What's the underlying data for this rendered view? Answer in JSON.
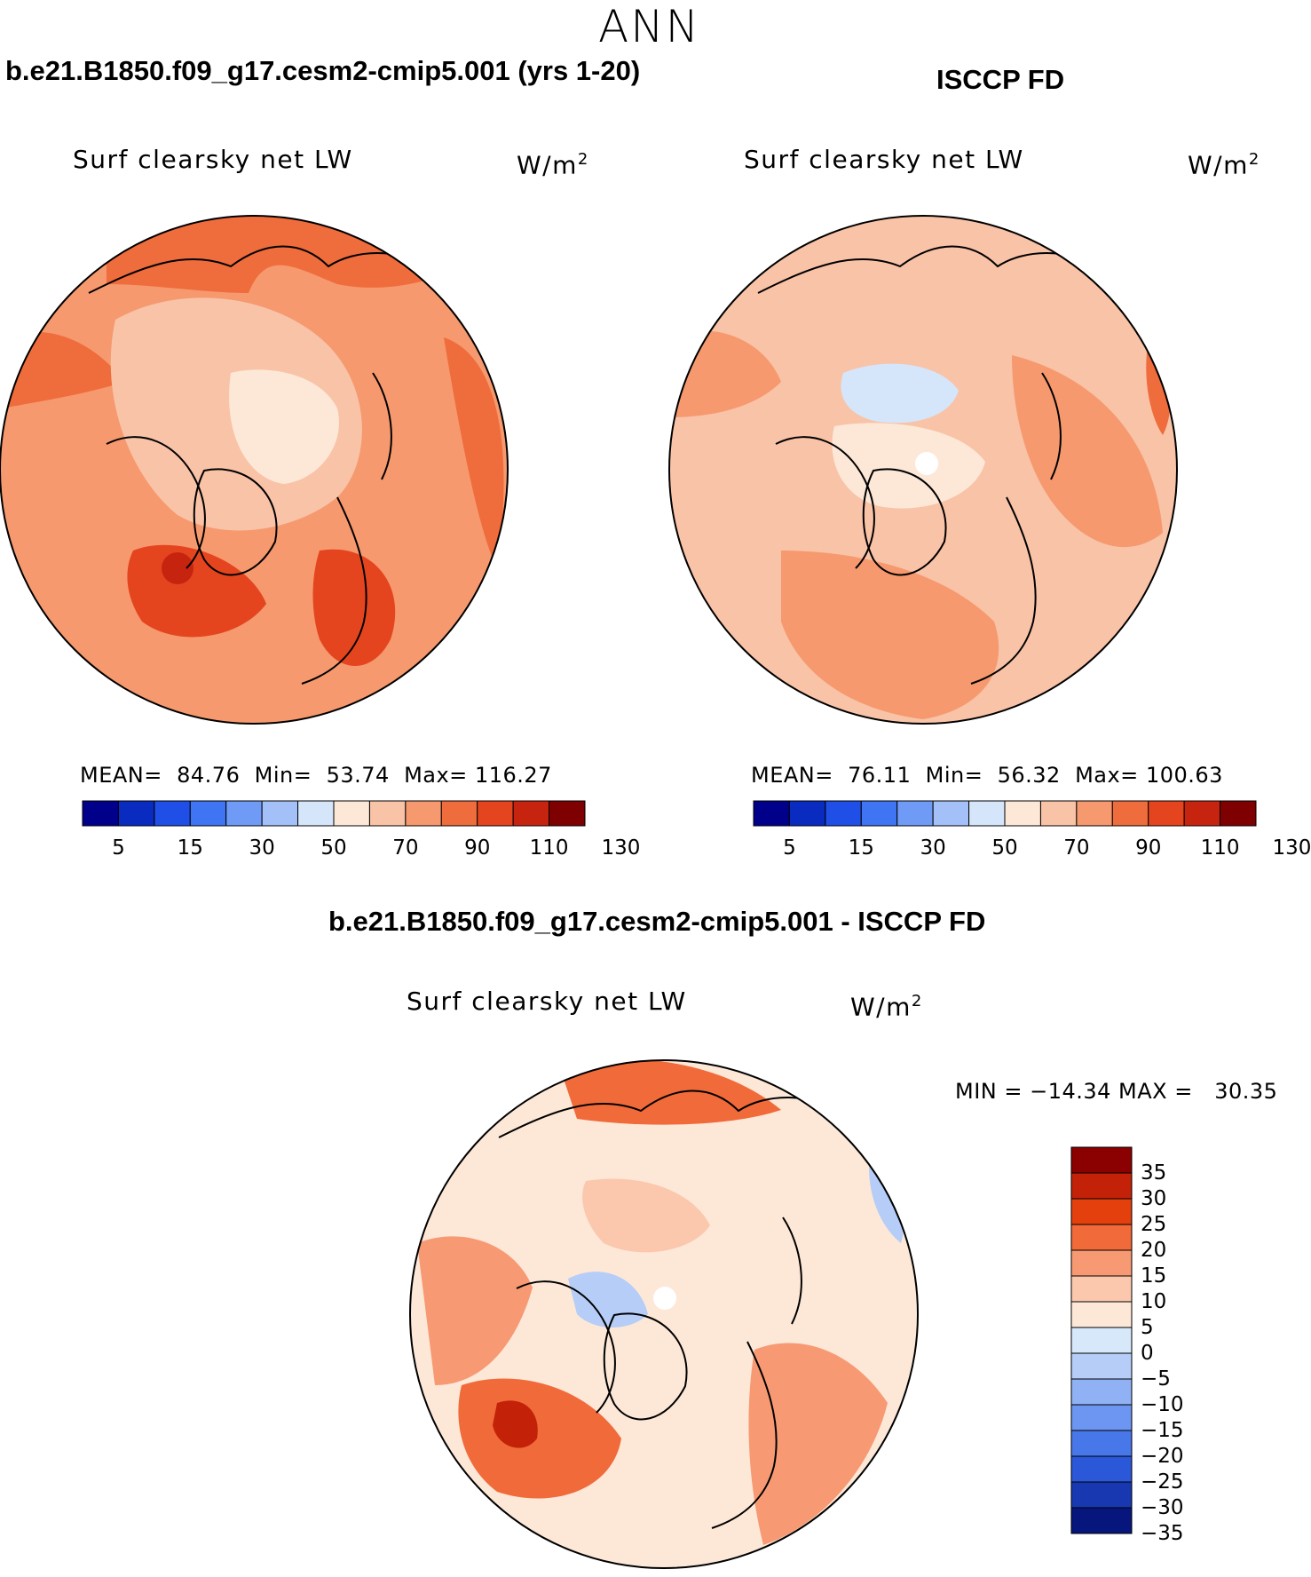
{
  "season": "ANN",
  "panels": [
    {
      "title": "b.e21.B1850.f09_g17.cesm2-cmip5.001 (yrs 1-20)",
      "variable": "Surf clearsky net LW",
      "units": "W/m",
      "units_exp": "2",
      "mean_label": "MEAN=",
      "mean": "84.76",
      "min_label": "Min=",
      "min": "53.74",
      "max_label": "Max=",
      "max": "116.27"
    },
    {
      "title": "ISCCP FD",
      "variable": "Surf clearsky net LW",
      "units": "W/m",
      "units_exp": "2",
      "mean_label": "MEAN=",
      "mean": "76.11",
      "min_label": "Min=",
      "min": "56.32",
      "max_label": "Max=",
      "max": "100.63"
    }
  ],
  "diff_panel": {
    "title": "b.e21.B1850.f09_g17.cesm2-cmip5.001 - ISCCP FD",
    "variable": "Surf clearsky net LW",
    "units": "W/m",
    "units_exp": "2",
    "minmax_text": "MIN = −14.34 MAX =   30.35"
  },
  "colorbar_abs": {
    "ticks": [
      "5",
      "15",
      "30",
      "50",
      "70",
      "90",
      "110",
      "130"
    ],
    "colors": [
      "#00008b",
      "#0a2bc0",
      "#1f4fe6",
      "#3f74f2",
      "#6f9bf6",
      "#a3c1f8",
      "#d5e6fa",
      "#fde8d8",
      "#f9c3a8",
      "#f6996e",
      "#ef6c3c",
      "#e4451f",
      "#c72410",
      "#7f0000"
    ]
  },
  "colorbar_diff": {
    "ticks": [
      "35",
      "30",
      "25",
      "20",
      "15",
      "10",
      "5",
      "0",
      "−5",
      "−10",
      "−15",
      "−20",
      "−25",
      "−30",
      "−35"
    ],
    "colors": [
      "#8b0000",
      "#c32208",
      "#e4400e",
      "#f06a3a",
      "#f79a74",
      "#fbc8ae",
      "#fde8d8",
      "#d6e8fa",
      "#b5cdf7",
      "#90b2f4",
      "#6c96f1",
      "#4877ea",
      "#2b58d8",
      "#1738b0",
      "#06167c"
    ]
  },
  "chart_data": [
    {
      "type": "heatmap",
      "projection": "north-polar-stereographic",
      "title": "b.e21.B1850.f09_g17.cesm2-cmip5.001 (yrs 1-20)",
      "variable": "Surf clearsky net LW",
      "units": "W/m2",
      "levels": [
        5,
        15,
        30,
        50,
        70,
        90,
        110,
        130
      ],
      "mean": 84.76,
      "min": 53.74,
      "max": 116.27
    },
    {
      "type": "heatmap",
      "projection": "north-polar-stereographic",
      "title": "ISCCP FD",
      "variable": "Surf clearsky net LW",
      "units": "W/m2",
      "levels": [
        5,
        15,
        30,
        50,
        70,
        90,
        110,
        130
      ],
      "mean": 76.11,
      "min": 56.32,
      "max": 100.63
    },
    {
      "type": "heatmap",
      "projection": "north-polar-stereographic",
      "title": "b.e21.B1850.f09_g17.cesm2-cmip5.001 - ISCCP FD",
      "variable": "Surf clearsky net LW",
      "units": "W/m2",
      "levels": [
        -35,
        -30,
        -25,
        -20,
        -15,
        -10,
        -5,
        0,
        5,
        10,
        15,
        20,
        25,
        30,
        35
      ],
      "min": -14.34,
      "max": 30.35
    }
  ]
}
